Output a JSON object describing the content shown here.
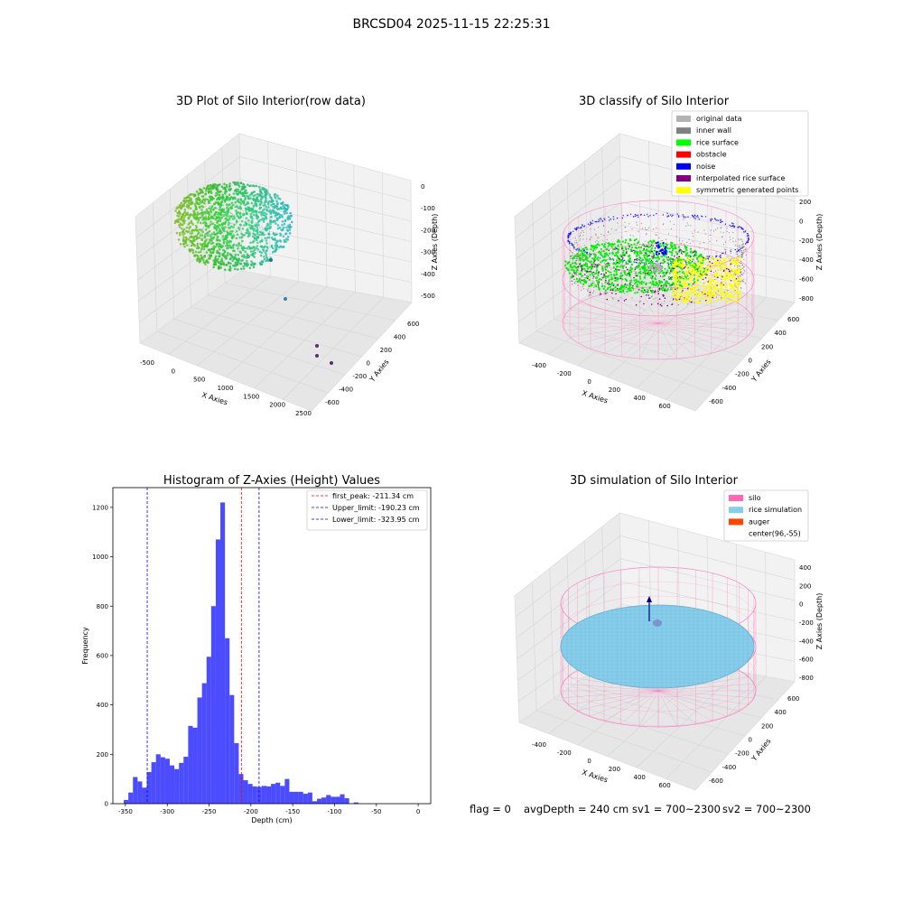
{
  "suptitle": "BRCSD04 2025-11-15 22:25:31",
  "panel1": {
    "title": "3D Plot of Silo Interior(row data)",
    "xlabel": "X Axies",
    "ylabel": "Y Axies",
    "zlabel": "Z Axies (Depth)",
    "xticks": [
      "-500",
      "0",
      "500",
      "1000",
      "1500",
      "2000",
      "2500"
    ],
    "yticks": [
      "600",
      "400",
      "200",
      "0",
      "-200",
      "-400",
      "-600"
    ],
    "zticks": [
      "0",
      "-100",
      "-200",
      "-300",
      "-400",
      "-500"
    ]
  },
  "panel2": {
    "title": "3D classify of Silo Interior",
    "xlabel": "X Axies",
    "ylabel": "Y Axies",
    "zlabel": "Z Axies (Depth)",
    "xticks": [
      "-400",
      "-200",
      "0",
      "200",
      "400",
      "600"
    ],
    "yticks": [
      "600",
      "400",
      "200",
      "0",
      "-200",
      "-400",
      "-600"
    ],
    "zticks": [
      "200",
      "0",
      "-200",
      "-400",
      "-600",
      "-800"
    ],
    "legend": [
      {
        "label": "original data",
        "color": "#b3b3b3"
      },
      {
        "label": "inner wall",
        "color": "#808080"
      },
      {
        "label": "rice surface",
        "color": "#00ff00"
      },
      {
        "label": "obstacle",
        "color": "#ff0000"
      },
      {
        "label": "noise",
        "color": "#0000ff"
      },
      {
        "label": "interpolated rice surface",
        "color": "#800080"
      },
      {
        "label": "symmetric generated points",
        "color": "#ffff00"
      }
    ]
  },
  "panel4": {
    "title": "3D simulation of Silo Interior",
    "xlabel": "X Axies",
    "ylabel": "Y Axies",
    "zlabel": "Z Axies (Depth)",
    "xticks": [
      "-400",
      "-200",
      "0",
      "200",
      "400",
      "600"
    ],
    "yticks": [
      "600",
      "400",
      "200",
      "0",
      "-200",
      "-400",
      "-600"
    ],
    "zticks": [
      "400",
      "200",
      "0",
      "-200",
      "-400",
      "-600",
      "-800"
    ],
    "legend": [
      {
        "label": "silo",
        "color": "#ff69b4"
      },
      {
        "label": "rice simulation",
        "color": "#87ceeb"
      },
      {
        "label": "auger",
        "color": "#ff4500"
      },
      {
        "label": "center(96,-55)",
        "color": ""
      }
    ]
  },
  "footer": {
    "flag": "flag = 0",
    "avg": "avgDepth = 240 cm",
    "sv1": "sv1 = 700~2300",
    "sv2": "sv2 = 700~2300"
  },
  "chart_data": [
    {
      "type": "histogram",
      "title": "Histogram of Z-Axies (Height) Values",
      "xlabel": "Depth (cm)",
      "ylabel": "Frequency",
      "xlim": [
        -365,
        15
      ],
      "ylim": [
        0,
        1280
      ],
      "xticks": [
        -350,
        -300,
        -250,
        -200,
        -150,
        -100,
        -50,
        0
      ],
      "yticks": [
        0,
        200,
        400,
        600,
        800,
        1000,
        1200
      ],
      "bar_color": "#0000ff",
      "bin_width": 5.5,
      "bins": [
        {
          "x": -352,
          "v": 15
        },
        {
          "x": -346.5,
          "v": 45
        },
        {
          "x": -341,
          "v": 108
        },
        {
          "x": -335.5,
          "v": 90
        },
        {
          "x": -330,
          "v": 65
        },
        {
          "x": -324.5,
          "v": 128
        },
        {
          "x": -319,
          "v": 168
        },
        {
          "x": -313.5,
          "v": 200
        },
        {
          "x": -308,
          "v": 188
        },
        {
          "x": -302.5,
          "v": 182
        },
        {
          "x": -297,
          "v": 155
        },
        {
          "x": -291.5,
          "v": 140
        },
        {
          "x": -286,
          "v": 165
        },
        {
          "x": -280.5,
          "v": 190
        },
        {
          "x": -275,
          "v": 315
        },
        {
          "x": -269.5,
          "v": 308
        },
        {
          "x": -264,
          "v": 430
        },
        {
          "x": -258.5,
          "v": 488
        },
        {
          "x": -253,
          "v": 595
        },
        {
          "x": -247.5,
          "v": 800
        },
        {
          "x": -242,
          "v": 1070
        },
        {
          "x": -236.5,
          "v": 1220
        },
        {
          "x": -231,
          "v": 670
        },
        {
          "x": -225.5,
          "v": 440
        },
        {
          "x": -220,
          "v": 245
        },
        {
          "x": -214.5,
          "v": 120
        },
        {
          "x": -209,
          "v": 95
        },
        {
          "x": -203.5,
          "v": 80
        },
        {
          "x": -198,
          "v": 70
        },
        {
          "x": -192.5,
          "v": 68
        },
        {
          "x": -187,
          "v": 72
        },
        {
          "x": -181.5,
          "v": 70
        },
        {
          "x": -176,
          "v": 80
        },
        {
          "x": -170.5,
          "v": 85
        },
        {
          "x": -165,
          "v": 72
        },
        {
          "x": -159.5,
          "v": 100
        },
        {
          "x": -154,
          "v": 48
        },
        {
          "x": -148.5,
          "v": 48
        },
        {
          "x": -143,
          "v": 48
        },
        {
          "x": -137.5,
          "v": 40
        },
        {
          "x": -132,
          "v": 45
        },
        {
          "x": -126.5,
          "v": 10
        },
        {
          "x": -121,
          "v": 20
        },
        {
          "x": -115.5,
          "v": 25
        },
        {
          "x": -110,
          "v": 35
        },
        {
          "x": -104.5,
          "v": 28
        },
        {
          "x": -99,
          "v": 28
        },
        {
          "x": -93.5,
          "v": 38
        },
        {
          "x": -88,
          "v": 22
        },
        {
          "x": -82.5,
          "v": 0
        },
        {
          "x": -77,
          "v": 5
        }
      ],
      "vlines": [
        {
          "x": -211.34,
          "color": "#ff0000",
          "label": "first_peak: -211.34 cm"
        },
        {
          "x": -190.23,
          "color": "#0000ff",
          "label": "Upper_limit: -190.23 cm"
        },
        {
          "x": -323.95,
          "color": "#0000ff",
          "label": "Lower_limit: -323.95 cm"
        }
      ],
      "legend_position": "top-right"
    }
  ]
}
